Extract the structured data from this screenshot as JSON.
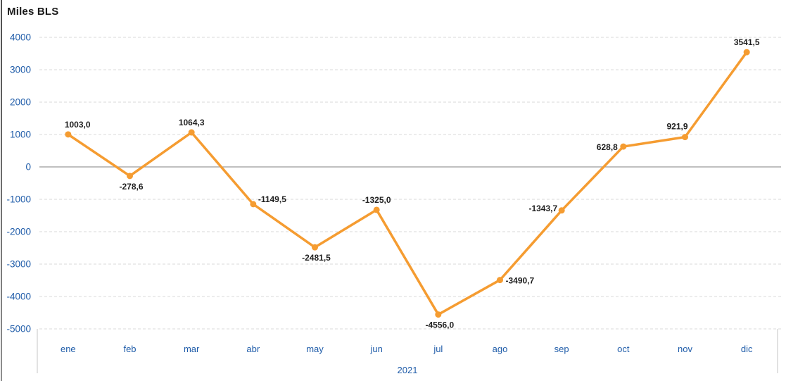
{
  "chart_data": {
    "type": "line",
    "title": "Miles BLS",
    "ylabel": "Miles BLS",
    "x_group_label": "2021",
    "categories": [
      "ene",
      "feb",
      "mar",
      "abr",
      "may",
      "jun",
      "jul",
      "ago",
      "sep",
      "oct",
      "nov",
      "dic"
    ],
    "values": [
      1003.0,
      -278.6,
      1064.3,
      -1149.5,
      -2481.5,
      -1325.0,
      -4556.0,
      -3490.7,
      -1343.7,
      628.8,
      921.9,
      3541.5
    ],
    "point_labels": [
      "1003,0",
      "-278,6",
      "1064,3",
      "-1149,5",
      "-2481,5",
      "-1325,0",
      "-4556,0",
      "-3490,7",
      "-1343,7",
      "628,8",
      "921,9",
      "3541,5"
    ],
    "label_placements": [
      "above-right",
      "below",
      "above",
      "right-above",
      "below",
      "above",
      "below",
      "right",
      "left-above",
      "left",
      "above-left",
      "above"
    ],
    "ylim": [
      -5000,
      4000
    ],
    "ytick_values": [
      4000,
      3000,
      2000,
      1000,
      0,
      -1000,
      -2000,
      -3000,
      -4000,
      -5000
    ],
    "ytick_labels": [
      "4000",
      "3000",
      "2000",
      "1000",
      "0",
      "-1000",
      "-2000",
      "-3000",
      "-4000",
      "-5000"
    ],
    "grid": "horizontal-dashed",
    "legend": "none",
    "colors": {
      "line": "#F59C31",
      "axis_text": "#1F5CA9",
      "grid": "#D9D9D9",
      "zero_line": "#9B9B9B",
      "band_border": "#C6C6C6",
      "data_label": "#1F1F1F"
    }
  }
}
